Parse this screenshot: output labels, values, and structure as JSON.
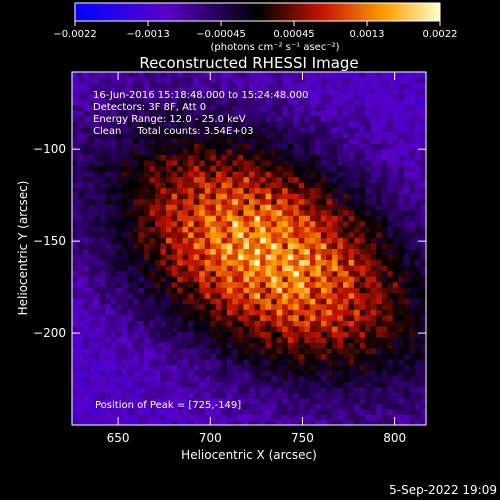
{
  "colorbar": {
    "ticks": [
      "−0.0022",
      "−0.0013",
      "−0.00045",
      "0.00045",
      "0.0013",
      "0.0022"
    ],
    "unit_label": "(photons cm⁻² s⁻¹ asec⁻²)",
    "range": [
      -0.0022,
      0.0022
    ]
  },
  "chart_data": {
    "type": "heatmap",
    "title": "Reconstructed RHESSI Image",
    "xlabel": "Heliocentric X (arcsec)",
    "ylabel": "Heliocentric Y (arcsec)",
    "x_ticks": [
      "650",
      "700",
      "750",
      "800"
    ],
    "x_tick_values": [
      650,
      700,
      750,
      800
    ],
    "y_ticks": [
      "−100",
      "−150",
      "−200"
    ],
    "y_tick_values": [
      -100,
      -150,
      -200
    ],
    "xlim": [
      625,
      817
    ],
    "ylim": [
      -250,
      -58
    ],
    "peak": {
      "x": 725,
      "y": -149
    },
    "color_scale": [
      "#0000ff",
      "#5a00c8",
      "#000000",
      "#c81400",
      "#ffa000",
      "#ffffcc"
    ],
    "annotations": [
      "16-Jun-2016 15:18:48.000 to 15:24:48.000",
      "Detectors: 3F 8F, Att 0",
      "Energy Range: 12.0 - 25.0 keV",
      "Clean     Total counts: 3.54E+03"
    ],
    "peak_label": "Position of Peak = [725,-149]"
  },
  "footer": {
    "date": "5-Sep-2022 19:09"
  }
}
